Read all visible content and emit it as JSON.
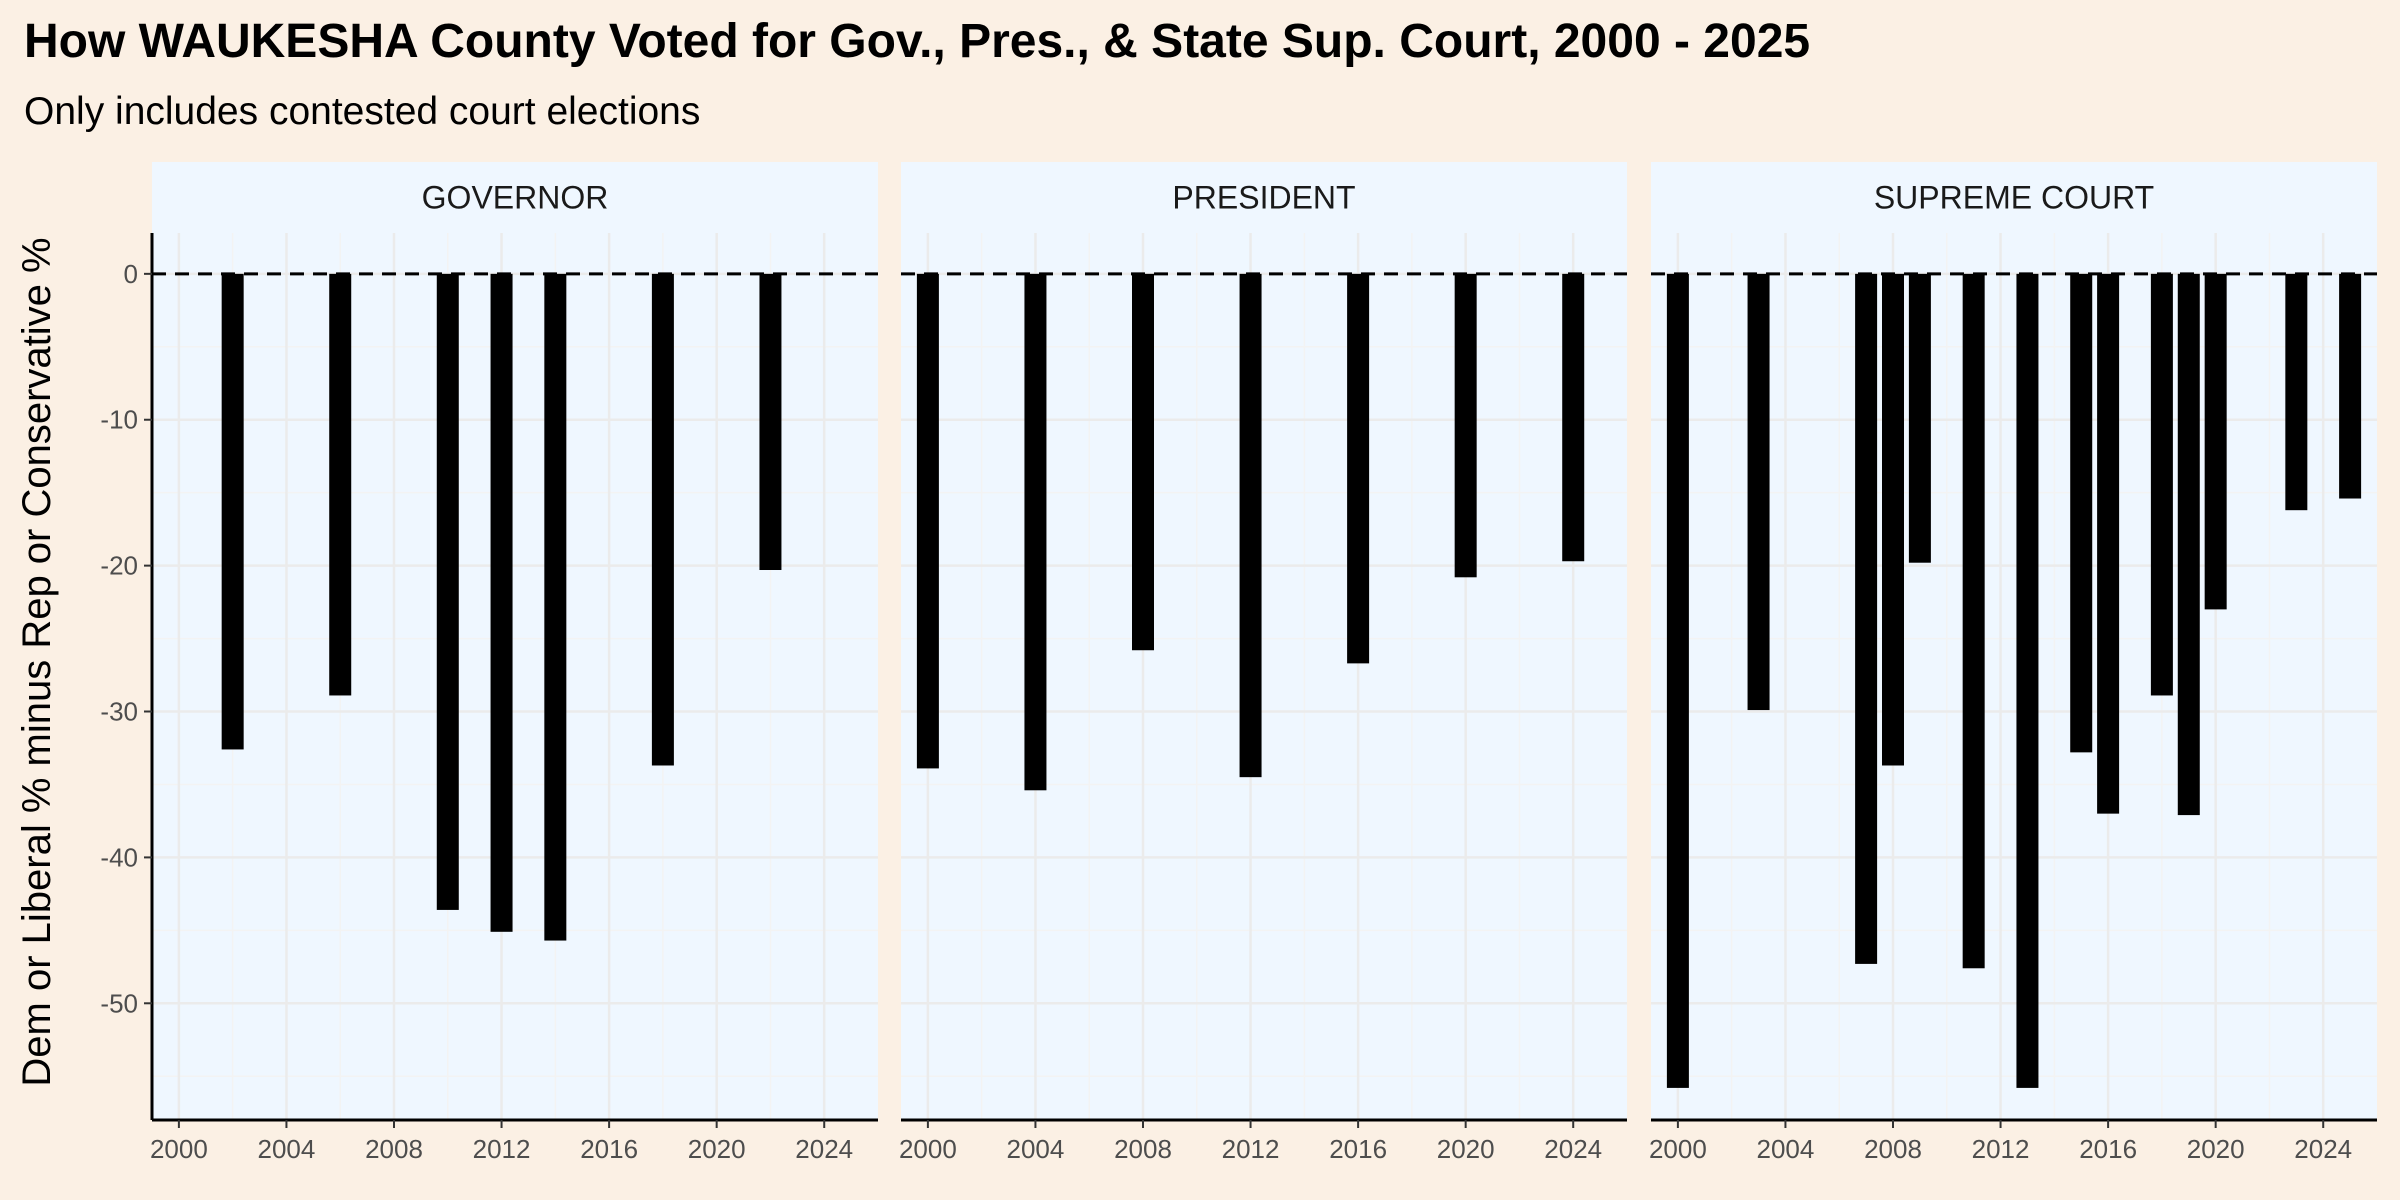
{
  "chart_data": {
    "type": "bar",
    "title": "How WAUKESHA County Voted for Gov., Pres., & State Sup. Court, 2000 - 2025",
    "subtitle": "Only includes contested court elections",
    "ylabel": "Dem or Liberal % minus Rep or Conservative %",
    "xlabel": "",
    "xlim": [
      1999,
      2026
    ],
    "ylim": [
      -58,
      2.8
    ],
    "x_ticks": [
      2000,
      2004,
      2008,
      2012,
      2016,
      2020,
      2024
    ],
    "y_ticks": [
      0,
      -10,
      -20,
      -30,
      -40,
      -50
    ],
    "zero_line": "dashed",
    "grid": true,
    "colors": {
      "bar": "#000000",
      "panel_background": "#eff7ff",
      "strip_background": "#eff7ff",
      "page_background": "#fbf0e4",
      "grid": "#ebebeb"
    },
    "panels": [
      {
        "name": "GOVERNOR",
        "bars": [
          {
            "x": 2002,
            "y": -32.6
          },
          {
            "x": 2006,
            "y": -28.9
          },
          {
            "x": 2010,
            "y": -43.6
          },
          {
            "x": 2012,
            "y": -45.1
          },
          {
            "x": 2014,
            "y": -45.7
          },
          {
            "x": 2018,
            "y": -33.7
          },
          {
            "x": 2022,
            "y": -20.3
          }
        ]
      },
      {
        "name": "PRESIDENT",
        "bars": [
          {
            "x": 2000,
            "y": -33.9
          },
          {
            "x": 2004,
            "y": -35.4
          },
          {
            "x": 2008,
            "y": -25.8
          },
          {
            "x": 2012,
            "y": -34.5
          },
          {
            "x": 2016,
            "y": -26.7
          },
          {
            "x": 2020,
            "y": -20.8
          },
          {
            "x": 2024,
            "y": -19.7
          }
        ]
      },
      {
        "name": "SUPREME COURT",
        "bars": [
          {
            "x": 2000,
            "y": -55.8
          },
          {
            "x": 2003,
            "y": -29.9
          },
          {
            "x": 2007,
            "y": -47.3
          },
          {
            "x": 2008,
            "y": -33.7
          },
          {
            "x": 2009,
            "y": -19.8
          },
          {
            "x": 2011,
            "y": -47.6
          },
          {
            "x": 2013,
            "y": -55.8
          },
          {
            "x": 2015,
            "y": -32.8
          },
          {
            "x": 2016,
            "y": -37.0
          },
          {
            "x": 2018,
            "y": -28.9
          },
          {
            "x": 2019,
            "y": -37.1
          },
          {
            "x": 2020,
            "y": -23.0
          },
          {
            "x": 2023,
            "y": -16.2
          },
          {
            "x": 2025,
            "y": -15.4
          }
        ]
      }
    ]
  }
}
